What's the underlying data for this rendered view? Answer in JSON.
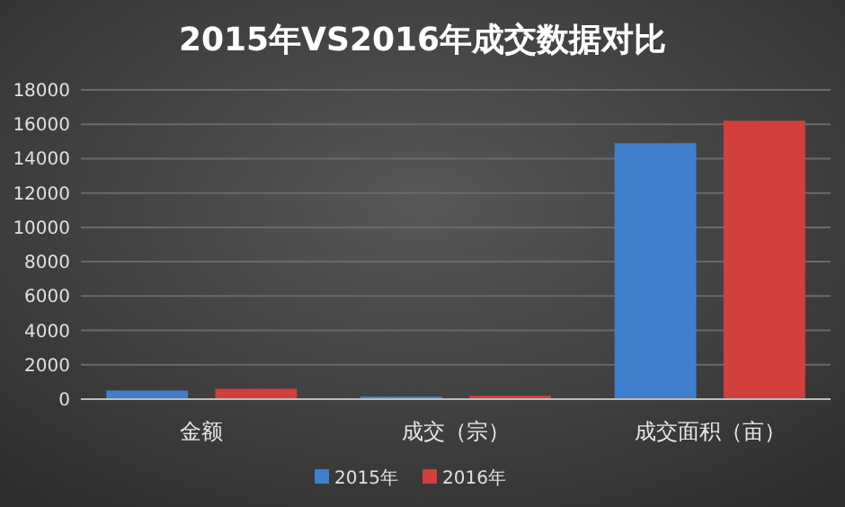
{
  "chart_data": {
    "type": "bar",
    "title": "2015年VS2016年成交数据对比",
    "categories": [
      "金额",
      "成交（宗）",
      "成交面积（亩）"
    ],
    "series": [
      {
        "name": "2015年",
        "color": "#3f7fcc",
        "values": [
          500,
          150,
          14900
        ]
      },
      {
        "name": "2016年",
        "color": "#d23f3c",
        "values": [
          600,
          200,
          16200
        ]
      }
    ],
    "ylim": [
      0,
      18000
    ],
    "yticks": [
      0,
      2000,
      4000,
      6000,
      8000,
      10000,
      12000,
      14000,
      16000,
      18000
    ],
    "grid": "y",
    "legend": "bottom"
  }
}
